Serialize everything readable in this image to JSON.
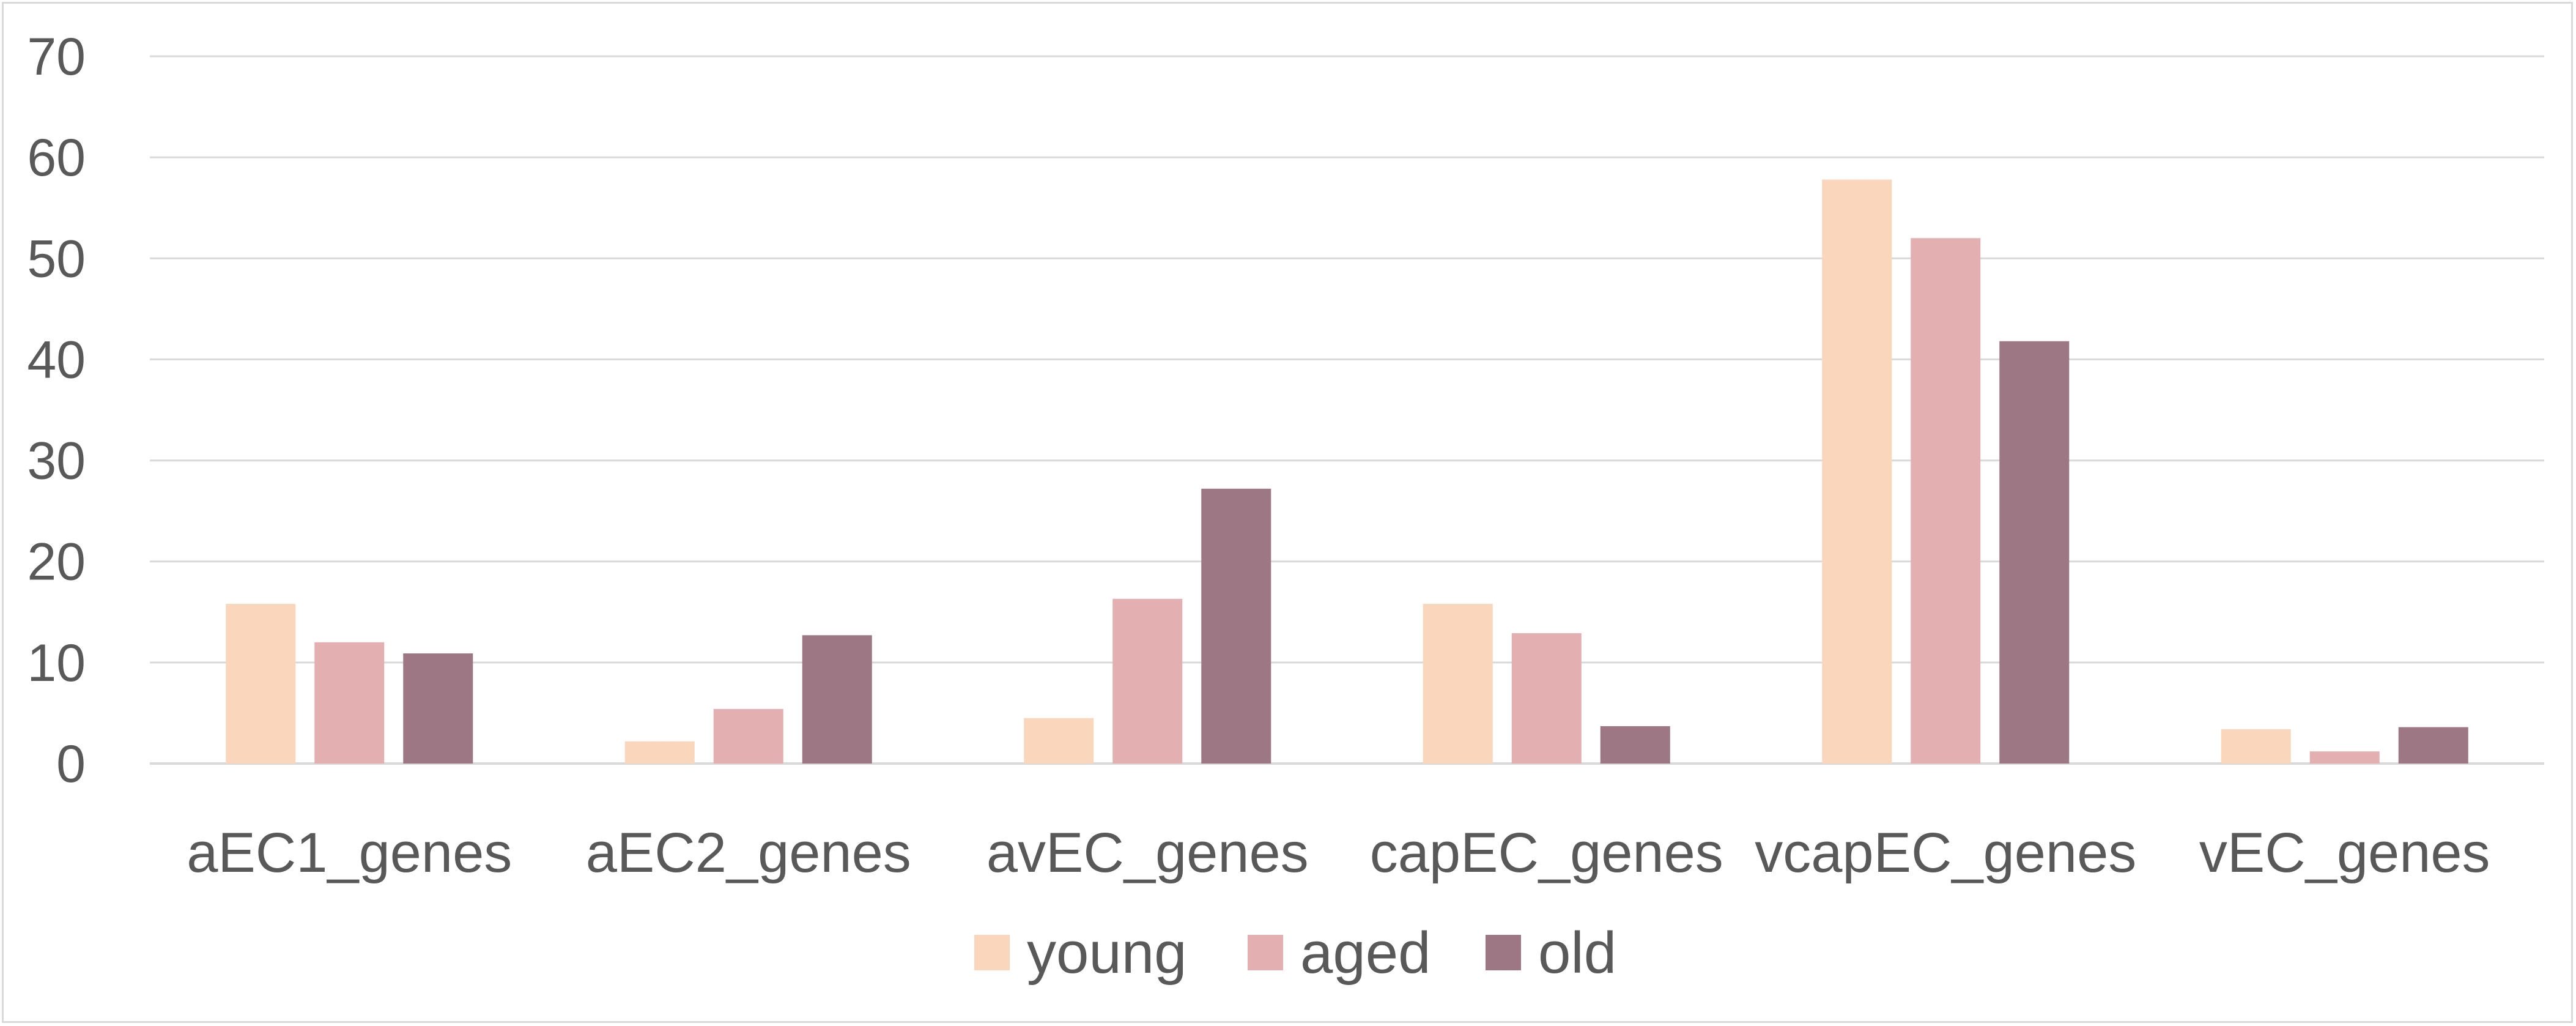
{
  "chart_data": {
    "type": "bar",
    "title": "",
    "xlabel": "",
    "ylabel": "",
    "ylim": [
      0,
      70
    ],
    "yticks": [
      "0",
      "10",
      "20",
      "30",
      "40",
      "50",
      "60",
      "70"
    ],
    "grid": true,
    "legend_position": "bottom",
    "categories": [
      "aEC1_genes",
      "aEC2_genes",
      "avEC_genes",
      "capEC_genes",
      "vcapEC_genes",
      "vEC_genes"
    ],
    "series": [
      {
        "name": "young",
        "color": "#fad7bc",
        "values": [
          15.8,
          2.2,
          4.5,
          15.8,
          57.8,
          3.4
        ]
      },
      {
        "name": "aged",
        "color": "#e3afb1",
        "values": [
          12.0,
          5.4,
          16.3,
          12.9,
          52.0,
          1.2
        ]
      },
      {
        "name": "old",
        "color": "#9d7784",
        "values": [
          10.9,
          12.7,
          27.2,
          3.7,
          41.8,
          3.6
        ]
      }
    ]
  }
}
